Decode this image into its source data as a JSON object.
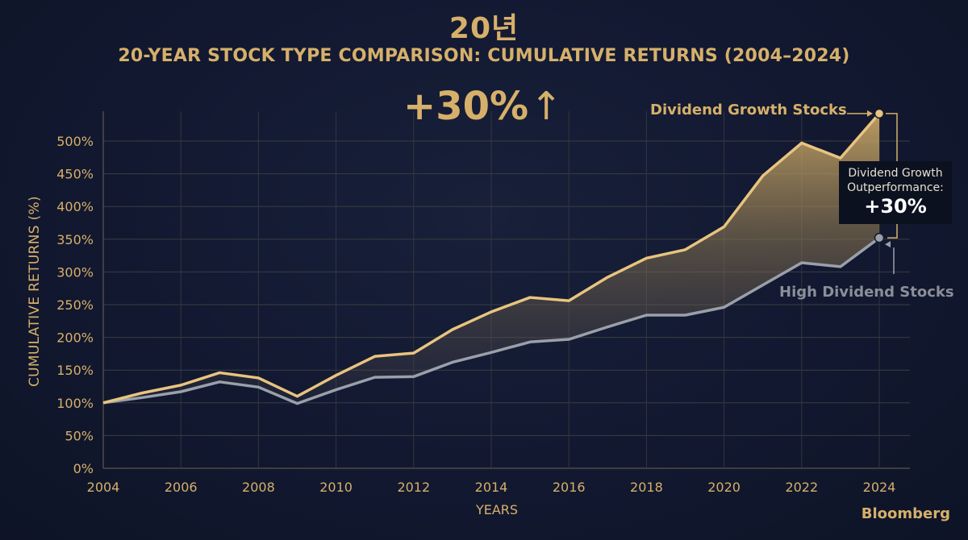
{
  "korean_title": "20년",
  "chart_data": {
    "type": "area",
    "title": "20-YEAR STOCK TYPE COMPARISON: CUMULATIVE RETURNS (2004–2024)",
    "xlabel": "YEARS",
    "ylabel": "CUMULATIVE RETURNS (%)",
    "x": [
      2004,
      2005,
      2006,
      2007,
      2008,
      2009,
      2010,
      2011,
      2012,
      2013,
      2014,
      2015,
      2016,
      2017,
      2018,
      2019,
      2020,
      2021,
      2022,
      2023,
      2024
    ],
    "xticks": [
      "2004",
      "2006",
      "2008",
      "2010",
      "2012",
      "2014",
      "2016",
      "2018",
      "2020",
      "2022",
      "2024"
    ],
    "yticks": [
      "0%",
      "50%",
      "100%",
      "150%",
      "200%",
      "250%",
      "300%",
      "350%",
      "400%",
      "450%",
      "500%"
    ],
    "ylim": [
      0,
      540
    ],
    "grid": true,
    "series": [
      {
        "name": "Dividend Growth Stocks",
        "color": "#e8c47e",
        "values": [
          100,
          115,
          127,
          146,
          138,
          110,
          142,
          171,
          176,
          212,
          239,
          261,
          256,
          292,
          321,
          334,
          369,
          447,
          497,
          474,
          542
        ]
      },
      {
        "name": "High Dividend Stocks",
        "color": "#9aa0aa",
        "values": [
          100,
          108,
          117,
          132,
          124,
          99,
          120,
          139,
          140,
          162,
          177,
          193,
          197,
          216,
          234,
          234,
          246,
          280,
          314,
          308,
          352
        ]
      }
    ],
    "annotations": {
      "headline": "+30%",
      "headline_arrow": "↑",
      "outperformance_line1": "Dividend Growth",
      "outperformance_line2": "Outperformance:",
      "outperformance_value": "+30%"
    }
  },
  "brand": "Bloomberg",
  "colors": {
    "background": "#131a2e",
    "accent_gold": "#d6b06a",
    "gray": "#8a8f99"
  }
}
